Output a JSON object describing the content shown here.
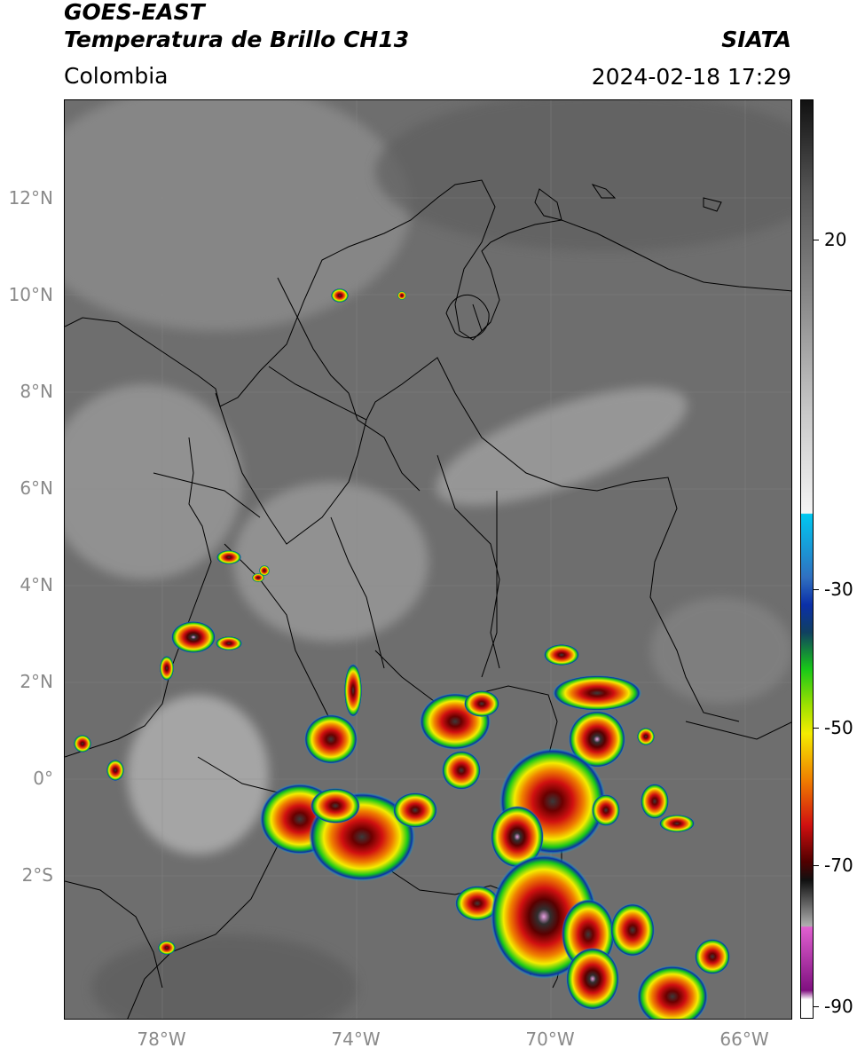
{
  "header": {
    "satellite": "GOES-EAST",
    "product": "Temperatura de Brillo CH13",
    "region": "Colombia",
    "organization": "SIATA",
    "datetime": "2024-02-18 17:29"
  },
  "map": {
    "lat_labels": [
      "12°N",
      "10°N",
      "8°N",
      "6°N",
      "4°N",
      "2°N",
      "0°",
      "2°S"
    ],
    "lon_labels": [
      "78°W",
      "74°W",
      "70°W",
      "66°W"
    ]
  },
  "colorbar": {
    "labels": [
      "20",
      "-30",
      "-50",
      "-70",
      "-90"
    ],
    "colors": {
      "warm_gray_top": "#111111",
      "cold_white": "#f4f4f4",
      "cyan": "#00c8f0",
      "blue": "#0b2fa8",
      "green": "#18c818",
      "yellow": "#f4ec00",
      "orange": "#f08000",
      "red": "#d01010",
      "dark_red": "#500000",
      "magenta": "#e060d0",
      "purple": "#801080"
    }
  }
}
